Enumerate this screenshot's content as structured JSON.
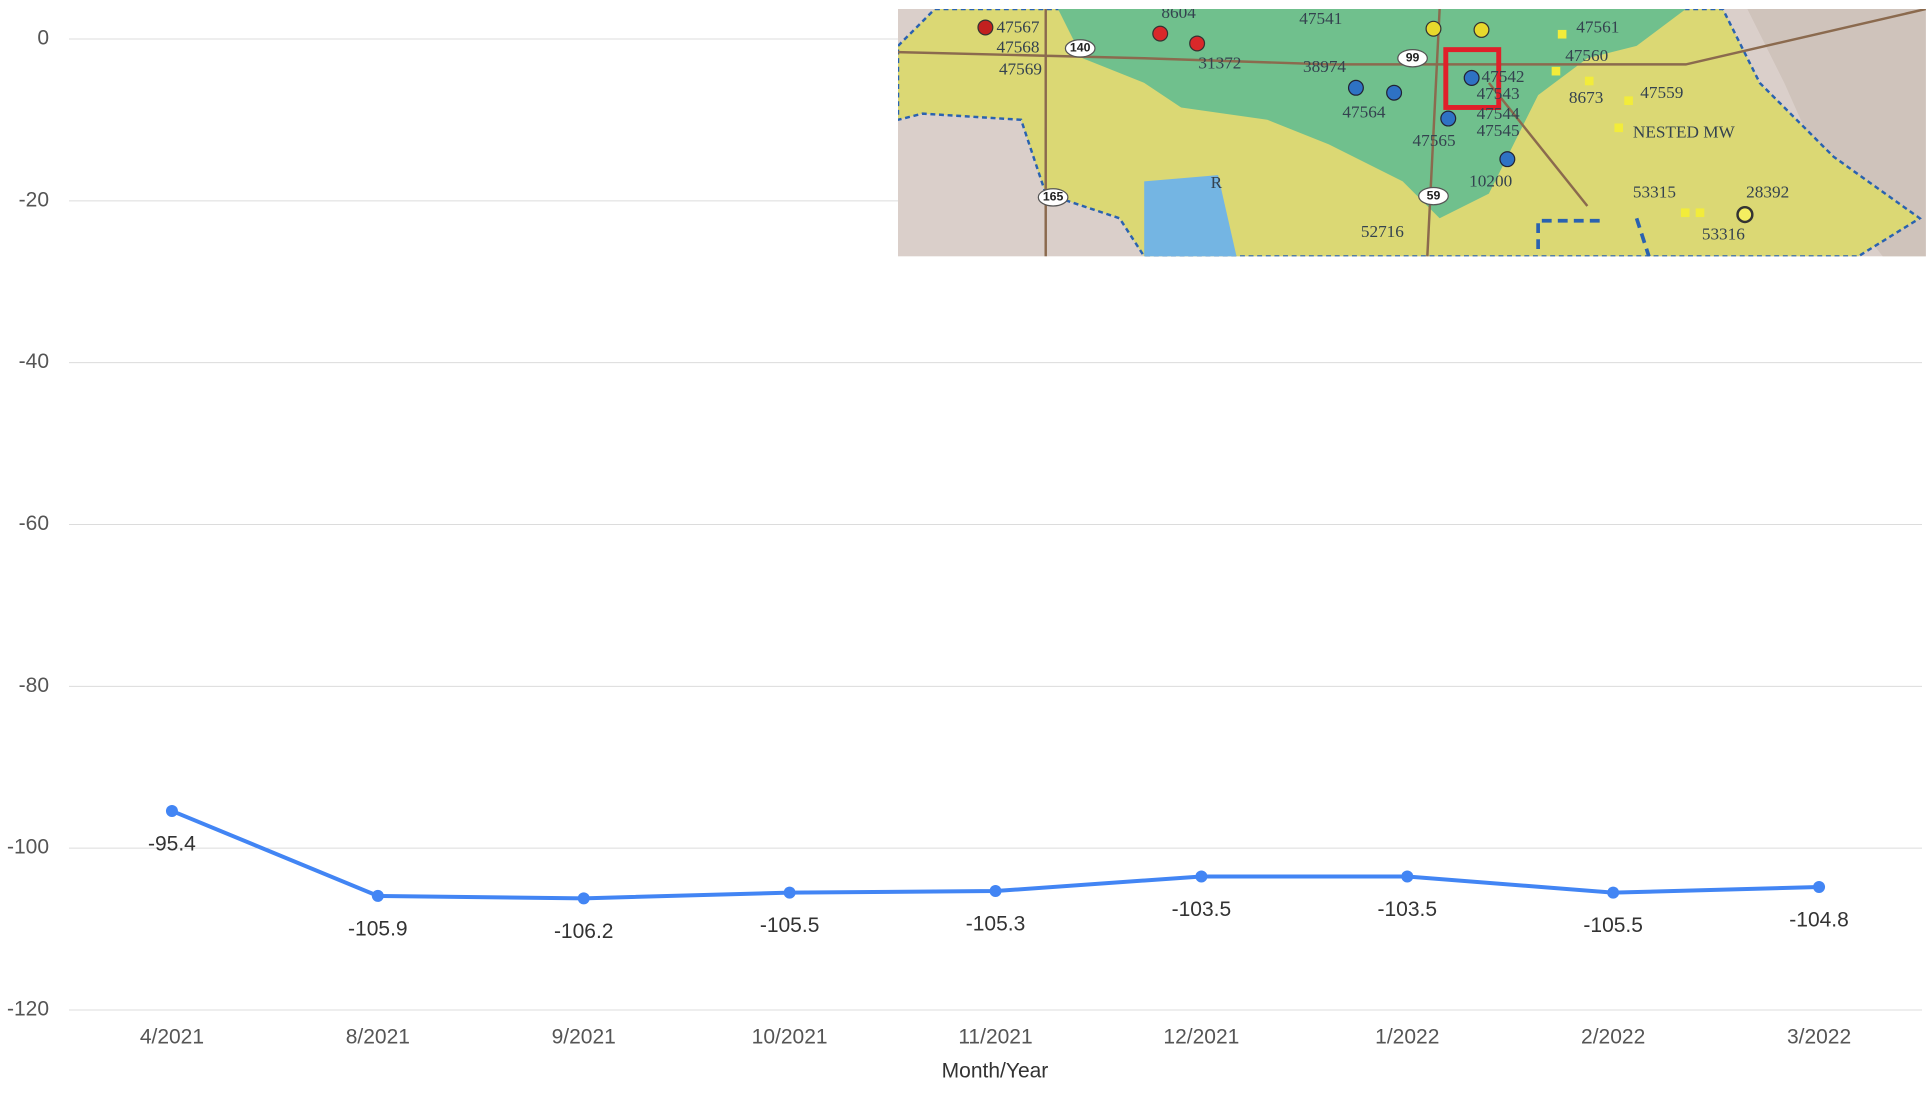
{
  "chart_data": {
    "type": "line",
    "x_label": "Month/Year",
    "categories": [
      "4/2021",
      "8/2021",
      "9/2021",
      "10/2021",
      "11/2021",
      "12/2021",
      "1/2022",
      "2/2022",
      "3/2022"
    ],
    "series": [
      {
        "color": "#4285f4",
        "values": [
          -95.4,
          -105.9,
          -106.2,
          -105.5,
          -105.3,
          -103.5,
          -103.5,
          -105.5,
          -104.8
        ]
      }
    ],
    "ylim": [
      -120,
      0
    ],
    "yticks": [
      0,
      -20,
      -40,
      -60,
      -80,
      -100,
      -120
    ],
    "grid": true
  },
  "inset_map": {
    "labels": [
      "47567",
      "47568",
      "47569",
      "8604",
      "140",
      "31372",
      "47541",
      "99",
      "38974",
      "47564",
      "47565",
      "47542",
      "47543",
      "47544",
      "47545",
      "47561",
      "47560",
      "8673",
      "47559",
      "NESTED MW",
      "10200",
      "165",
      "R",
      "59",
      "52716",
      "53315",
      "28392",
      "53316"
    ]
  }
}
